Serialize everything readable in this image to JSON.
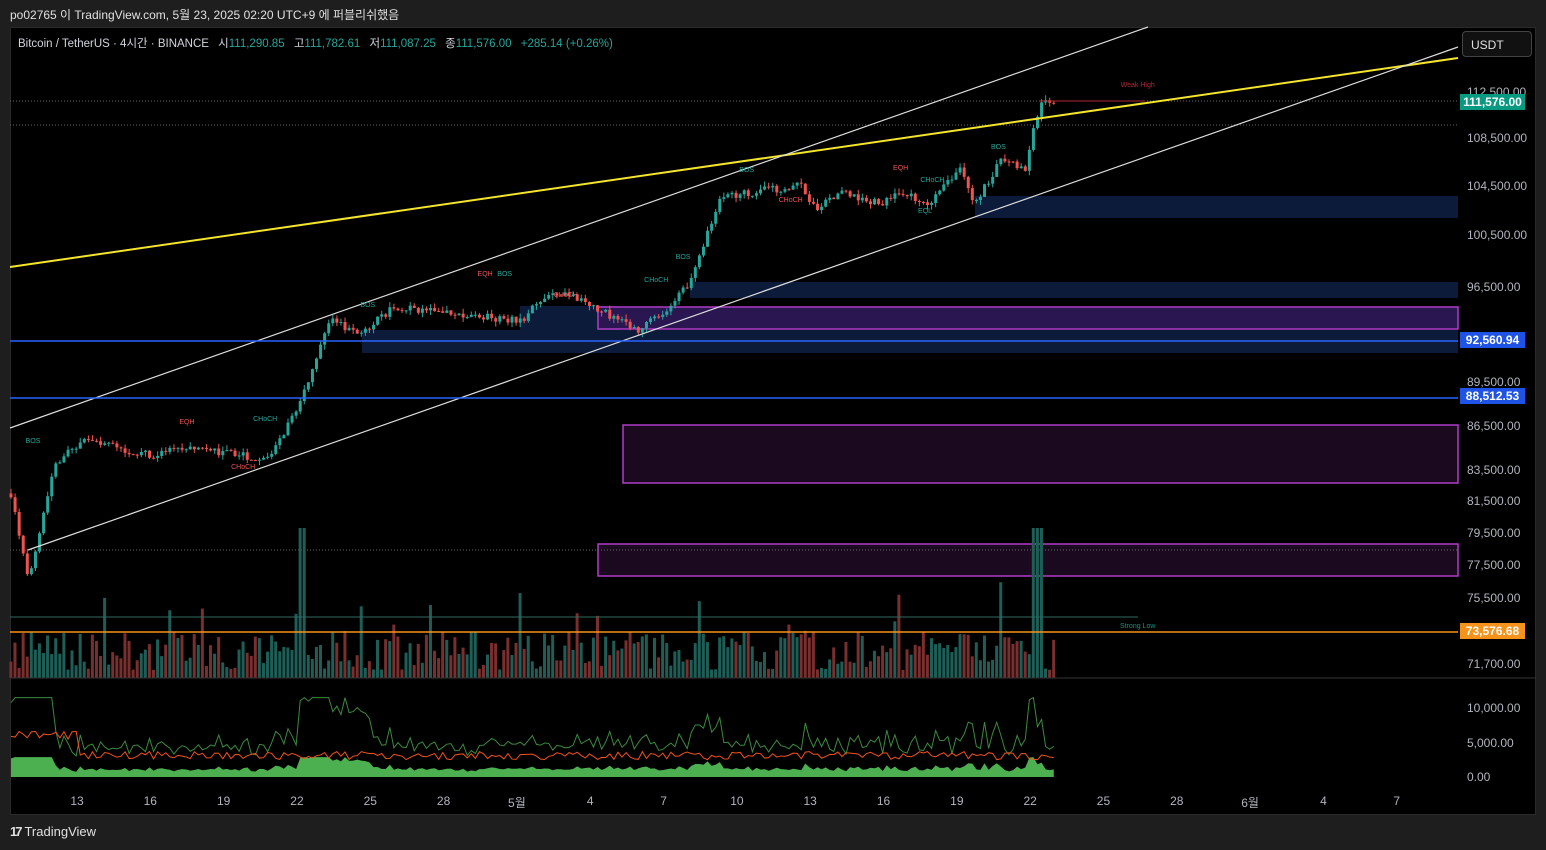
{
  "publish_line": "po02765 이 TradingView.com, 5월 23, 2025 02:20 UTC+9 에 퍼블리쉬했음",
  "legend": {
    "symbol": "Bitcoin / TetherUS · 4시간 · BINANCE",
    "open_label": "시",
    "open": "111,290.85",
    "high_label": "고",
    "high": "111,782.61",
    "low_label": "저",
    "low": "111,087.25",
    "close_label": "종",
    "close": "111,576.00",
    "change": "+285.14 (+0.26%)"
  },
  "currency_button": "USDT",
  "price_axis": [
    {
      "v": 112500,
      "t": "112,500.00"
    },
    {
      "v": 108500,
      "t": "108,500.00"
    },
    {
      "v": 104500,
      "t": "104,500.00"
    },
    {
      "v": 100500,
      "t": "100,500.00"
    },
    {
      "v": 96500,
      "t": "96,500.00"
    },
    {
      "v": 89500,
      "t": "89,500.00"
    },
    {
      "v": 86500,
      "t": "86,500.00"
    },
    {
      "v": 83500,
      "t": "83,500.00"
    },
    {
      "v": 81500,
      "t": "81,500.00"
    },
    {
      "v": 79500,
      "t": "79,500.00"
    },
    {
      "v": 77500,
      "t": "77,500.00"
    },
    {
      "v": 75500,
      "t": "75,500.00"
    },
    {
      "v": 71700,
      "t": "71,700.00"
    }
  ],
  "price_tags": [
    {
      "v": 111576,
      "t": "111,576.00",
      "color": "#089981"
    },
    {
      "v": 92560.94,
      "t": "92,560.94",
      "color": "#1e53e5"
    },
    {
      "v": 88512.53,
      "t": "88,512.53",
      "color": "#1e53e5"
    },
    {
      "v": 73576.68,
      "t": "73,576.68",
      "color": "#f7931a"
    }
  ],
  "indicator_axis": [
    {
      "v": 10000,
      "t": "10,000.00"
    },
    {
      "v": 5000,
      "t": "5,000.00"
    },
    {
      "v": 0,
      "t": "0.00"
    }
  ],
  "time_axis": [
    {
      "d": 0,
      "t": "13"
    },
    {
      "d": 3,
      "t": "16"
    },
    {
      "d": 6,
      "t": "19"
    },
    {
      "d": 9,
      "t": "22"
    },
    {
      "d": 12,
      "t": "25"
    },
    {
      "d": 15,
      "t": "28"
    },
    {
      "d": 18,
      "t": "5월"
    },
    {
      "d": 21,
      "t": "4"
    },
    {
      "d": 24,
      "t": "7"
    },
    {
      "d": 27,
      "t": "10"
    },
    {
      "d": 30,
      "t": "13"
    },
    {
      "d": 33,
      "t": "16"
    },
    {
      "d": 36,
      "t": "19"
    },
    {
      "d": 39,
      "t": "22"
    },
    {
      "d": 42,
      "t": "25"
    },
    {
      "d": 45,
      "t": "28"
    },
    {
      "d": 48,
      "t": "6월"
    },
    {
      "d": 51,
      "t": "4"
    },
    {
      "d": 54,
      "t": "7"
    }
  ],
  "annotations": [
    {
      "t": "BOS",
      "d": -1.8,
      "p": 85300,
      "c": "#26a69a"
    },
    {
      "t": "EQH",
      "d": 4.5,
      "p": 86600,
      "c": "#ef5350"
    },
    {
      "t": "CHoCH",
      "d": 7.7,
      "p": 86800,
      "c": "#26a69a"
    },
    {
      "t": "CHoCH",
      "d": 6.8,
      "p": 83600,
      "c": "#ef5350"
    },
    {
      "t": "BOS",
      "d": 11.9,
      "p": 95000,
      "c": "#26a69a"
    },
    {
      "t": "EQH",
      "d": 16.7,
      "p": 97300,
      "c": "#ef5350"
    },
    {
      "t": "BOS",
      "d": 17.5,
      "p": 97300,
      "c": "#26a69a"
    },
    {
      "t": "CHoCH",
      "d": 20,
      "p": 95700,
      "c": "#ef5350"
    },
    {
      "t": "CHoCH",
      "d": 23.7,
      "p": 96900,
      "c": "#26a69a"
    },
    {
      "t": "BOS",
      "d": 24.8,
      "p": 98600,
      "c": "#26a69a"
    },
    {
      "t": "BOS",
      "d": 27.4,
      "p": 105600,
      "c": "#26a69a"
    },
    {
      "t": "CHoCH",
      "d": 29.2,
      "p": 103200,
      "c": "#ef5350"
    },
    {
      "t": "EQH",
      "d": 33.7,
      "p": 105800,
      "c": "#ef5350"
    },
    {
      "t": "CHoCH",
      "d": 35,
      "p": 104800,
      "c": "#26a69a"
    },
    {
      "t": "EQL",
      "d": 34.7,
      "p": 102300,
      "c": "#26a69a"
    },
    {
      "t": "BOS",
      "d": 37.7,
      "p": 107600,
      "c": "#26a69a"
    },
    {
      "t": "Weak High",
      "d": 43.4,
      "p": 112900,
      "c": "#b22833"
    },
    {
      "t": "Strong Low",
      "d": 43.4,
      "p": 73750,
      "c": "#089981"
    }
  ],
  "chart_data": {
    "type": "candlestick",
    "symbol": "BTCUSDT",
    "interval": "4h",
    "scale": "log",
    "price_path": [
      [
        -2.7,
        82000
      ],
      [
        -2,
        76500
      ],
      [
        -0.9,
        84000
      ],
      [
        0.3,
        85500
      ],
      [
        3,
        84500
      ],
      [
        4.6,
        85000
      ],
      [
        7.9,
        84200
      ],
      [
        9.1,
        88000
      ],
      [
        10.4,
        94000
      ],
      [
        11.6,
        93000
      ],
      [
        13,
        95000
      ],
      [
        15,
        94500
      ],
      [
        18.2,
        94000
      ],
      [
        19,
        95500
      ],
      [
        20,
        96000
      ],
      [
        22.2,
        94000
      ],
      [
        23,
        93300
      ],
      [
        24,
        94500
      ],
      [
        25.1,
        96800
      ],
      [
        26.3,
        103500
      ],
      [
        28.4,
        104200
      ],
      [
        29.6,
        104500
      ],
      [
        30.2,
        102500
      ],
      [
        31.2,
        104000
      ],
      [
        32.8,
        103000
      ],
      [
        33.7,
        104000
      ],
      [
        34.9,
        103000
      ],
      [
        36.1,
        106000
      ],
      [
        36.7,
        103000
      ],
      [
        37.8,
        106500
      ],
      [
        38.8,
        106000
      ],
      [
        39.4,
        111500
      ],
      [
        40,
        111576
      ]
    ],
    "last_price": 111576.0,
    "indicator_range": [
      0,
      12000
    ]
  }
}
